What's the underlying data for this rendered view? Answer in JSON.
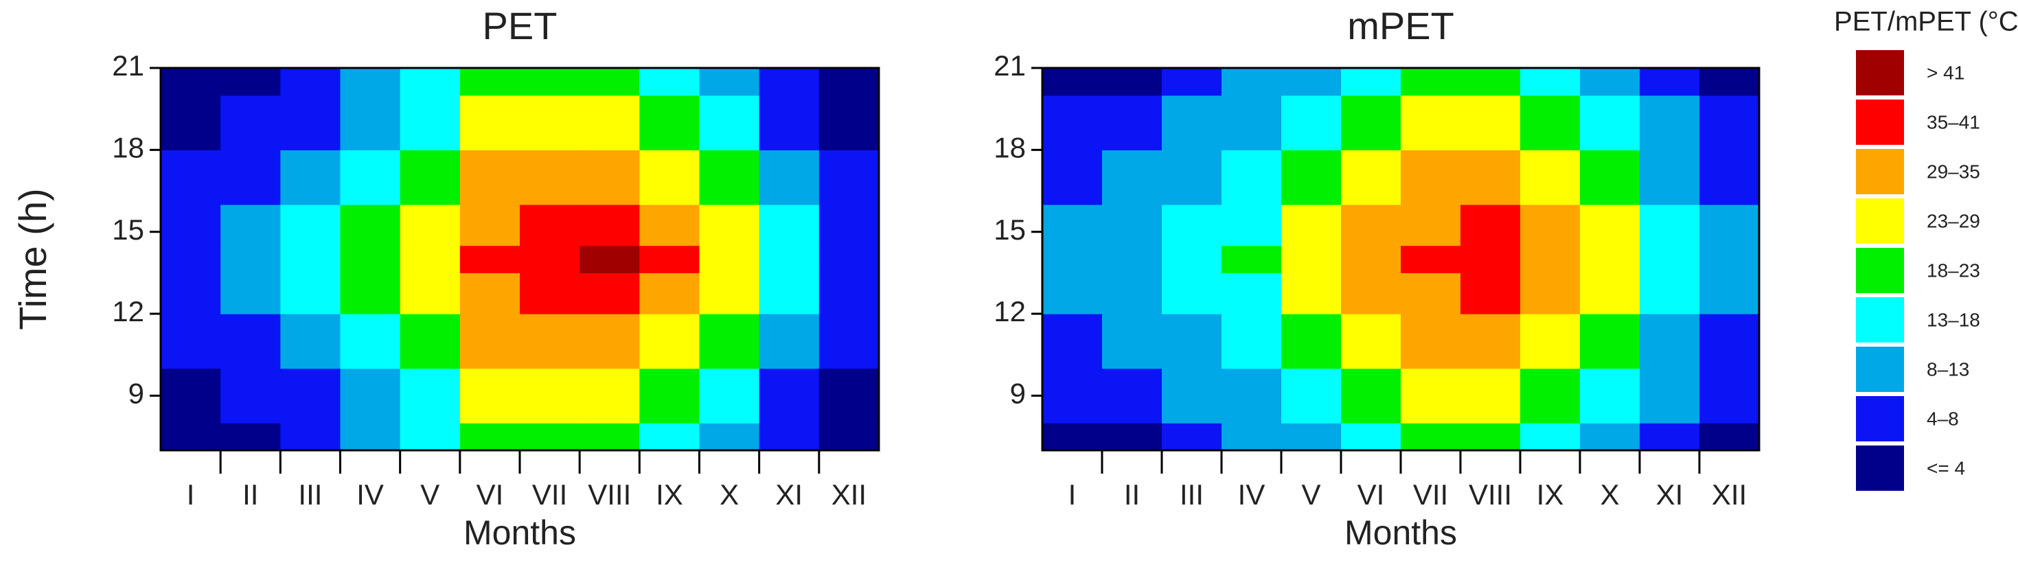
{
  "chart_data": [
    {
      "type": "heatmap",
      "title": "PET",
      "xlabel": "Months",
      "ylabel": "Time (h)",
      "categories": [
        "I",
        "II",
        "III",
        "IV",
        "V",
        "VI",
        "VII",
        "VIII",
        "IX",
        "X",
        "XI",
        "XII"
      ],
      "y": [
        7,
        9,
        11,
        13,
        14,
        15,
        17,
        19,
        21
      ],
      "ylim": [
        7,
        21
      ],
      "yticks": [
        9,
        12,
        15,
        18,
        21
      ],
      "values": [
        [
          2,
          3.2,
          4.4,
          5.6,
          6,
          5.6,
          4.4,
          3.2,
          2
        ],
        [
          3,
          5.1,
          7.2,
          9.3,
          10,
          9.3,
          7.2,
          5.1,
          3
        ],
        [
          5,
          8,
          11,
          14,
          15,
          14,
          11,
          8,
          5
        ],
        [
          9,
          12.3,
          15.6,
          18.9,
          20,
          18.9,
          15.6,
          12.3,
          9
        ],
        [
          14,
          17.9,
          21.8,
          25.7,
          27,
          25.7,
          21.8,
          17.9,
          14
        ],
        [
          19,
          24.1,
          29.2,
          34.3,
          36,
          34.3,
          29.2,
          24.1,
          19
        ],
        [
          23,
          28.1,
          33.2,
          38.3,
          40,
          38.3,
          33.2,
          28.1,
          23
        ],
        [
          23,
          28.7,
          34.4,
          40.1,
          42,
          40.1,
          34.4,
          28.7,
          23
        ],
        [
          17,
          22.7,
          28.4,
          34.1,
          36,
          34.1,
          28.4,
          22.7,
          17
        ],
        [
          10,
          15.1,
          20.2,
          25.3,
          27,
          25.3,
          20.2,
          15.1,
          10
        ],
        [
          5,
          8,
          11,
          14,
          15,
          14,
          11,
          8,
          5
        ],
        [
          2,
          3.5,
          5,
          6.5,
          7,
          6.5,
          5,
          3.5,
          2
        ]
      ]
    },
    {
      "type": "heatmap",
      "title": "mPET",
      "xlabel": "Months",
      "categories": [
        "I",
        "II",
        "III",
        "IV",
        "V",
        "VI",
        "VII",
        "VIII",
        "IX",
        "X",
        "XI",
        "XII"
      ],
      "y": [
        7,
        9,
        11,
        13,
        14,
        15,
        17,
        19,
        21
      ],
      "ylim": [
        7,
        21
      ],
      "yticks": [
        9,
        12,
        15,
        18,
        21
      ],
      "values": [
        [
          4,
          5.5,
          7,
          8.5,
          9,
          8.5,
          7,
          5.5,
          4
        ],
        [
          4,
          6.1,
          8.2,
          10.3,
          11,
          10.3,
          8.2,
          6.1,
          4
        ],
        [
          6,
          8.7,
          11.4,
          14.1,
          15,
          14.1,
          11.4,
          8.7,
          6
        ],
        [
          9,
          12,
          15,
          18,
          19,
          18,
          15,
          12,
          9
        ],
        [
          13,
          16.6,
          20.2,
          23.8,
          25,
          23.8,
          20.2,
          16.6,
          13
        ],
        [
          17,
          21.5,
          26,
          30.5,
          32,
          30.5,
          26,
          21.5,
          17
        ],
        [
          20,
          24.8,
          29.6,
          34.4,
          36,
          34.4,
          29.6,
          24.8,
          20
        ],
        [
          21,
          25.8,
          30.6,
          35.4,
          37,
          35.4,
          30.6,
          25.8,
          21
        ],
        [
          17,
          21.8,
          26.6,
          31.4,
          33,
          31.4,
          26.6,
          21.8,
          17
        ],
        [
          12,
          15.9,
          19.8,
          23.7,
          25,
          23.7,
          19.8,
          15.9,
          12
        ],
        [
          7,
          9.4,
          11.8,
          14.2,
          15,
          14.2,
          11.8,
          9.4,
          7
        ],
        [
          4,
          5.5,
          7,
          8.5,
          9,
          8.5,
          7,
          5.5,
          4
        ]
      ],
      "legend": {
        "title": "PET/mPET (°C)",
        "levels": [
          4,
          8,
          13,
          18,
          23,
          29,
          35,
          41
        ],
        "labels": [
          "<= 4",
          "4–8",
          "8–13",
          "13–18",
          "18–23",
          "23–29",
          "29–35",
          "35–41",
          "> 41"
        ],
        "colors": [
          "#00008b",
          "#0a14f5",
          "#00a8e8",
          "#00ffff",
          "#00f000",
          "#ffff00",
          "#ffa500",
          "#ff0000",
          "#a00000"
        ]
      }
    }
  ]
}
